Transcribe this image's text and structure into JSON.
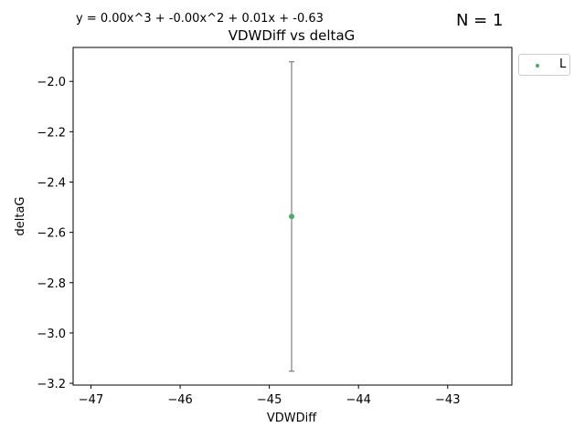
{
  "equation_text": "y = 0.00x^3 + -0.00x^2 + 0.01x + -0.63",
  "count_text": "N = 1",
  "chart_data": {
    "type": "scatter",
    "title": "VDWDiff vs deltaG",
    "xlabel": "VDWDiff",
    "ylabel": "deltaG",
    "xlim": [
      -47.2,
      -42.28
    ],
    "ylim": [
      -3.207,
      -1.865
    ],
    "xticks": [
      -47,
      -46,
      -45,
      -44,
      -43
    ],
    "yticks": [
      -2.0,
      -2.2,
      -2.4,
      -2.6,
      -2.8,
      -3.0,
      -3.2
    ],
    "xtick_labels": [
      "−47",
      "−46",
      "−45",
      "−44",
      "−43"
    ],
    "ytick_labels": [
      "−2.0",
      "−2.2",
      "−2.4",
      "−2.6",
      "−2.8",
      "−3.0",
      "−3.2"
    ],
    "grid": false,
    "legend_position": "outside-top-right",
    "series": [
      {
        "name": "L",
        "color": "#3cb462",
        "points": [
          {
            "x": -44.75,
            "y": -2.537,
            "y_err_low": -3.152,
            "y_err_high": -1.922
          }
        ]
      }
    ],
    "errorbar_color": "#666666"
  }
}
